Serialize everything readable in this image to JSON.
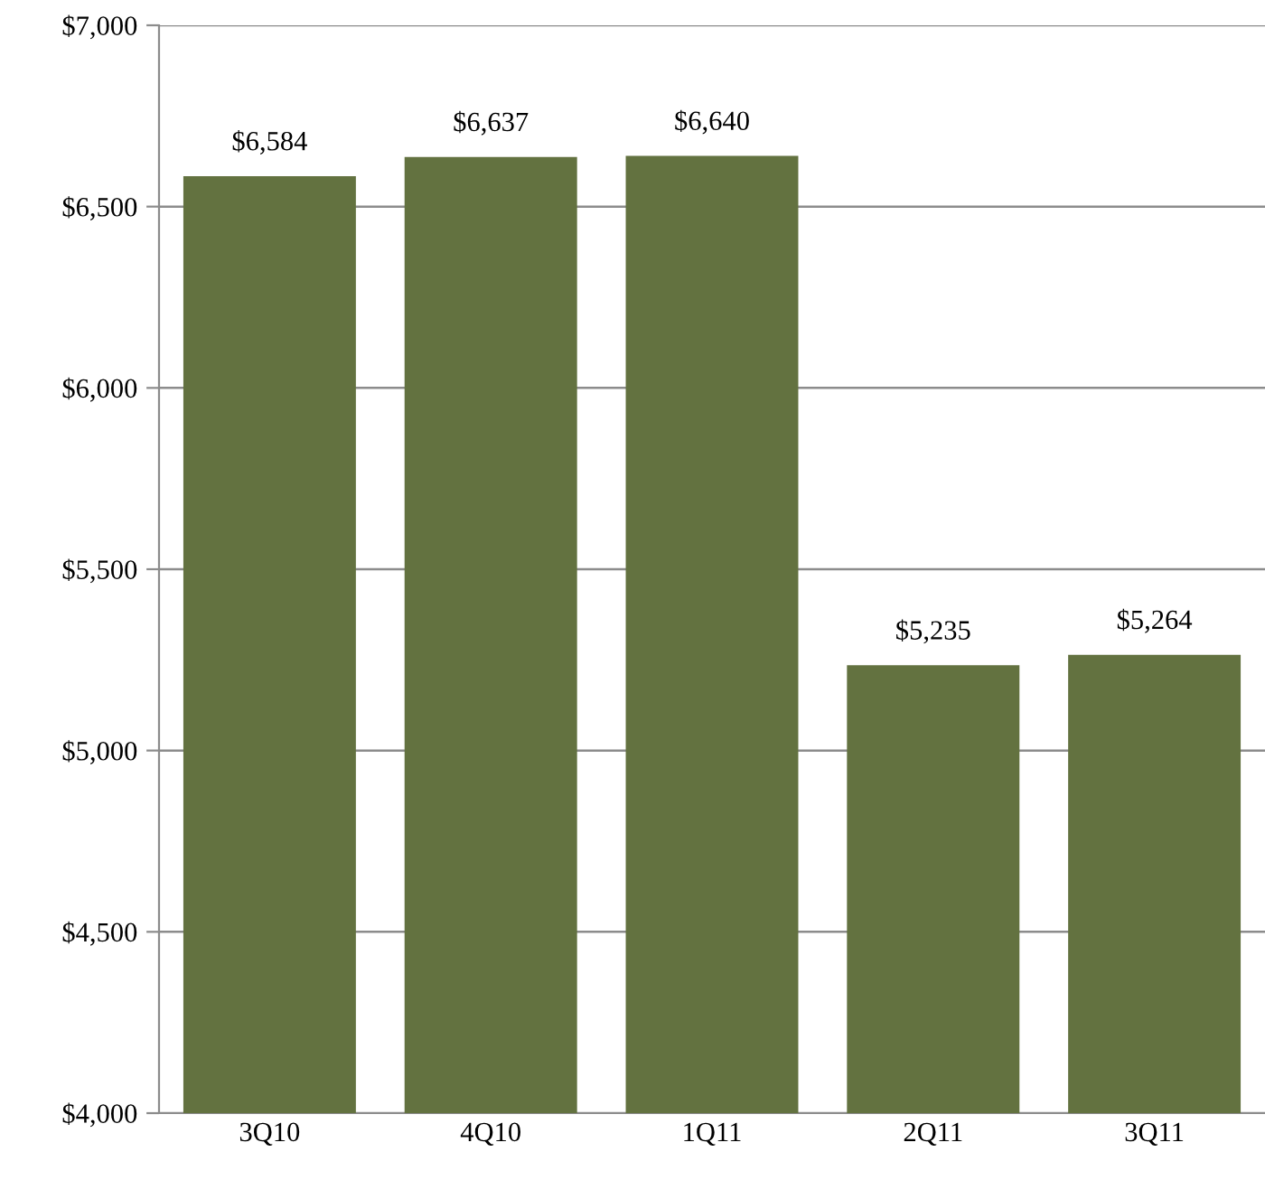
{
  "chart_data": {
    "type": "bar",
    "categories": [
      "3Q10",
      "4Q10",
      "1Q11",
      "2Q11",
      "3Q11"
    ],
    "values": [
      6584,
      6637,
      6640,
      5235,
      5264
    ],
    "value_labels": [
      "$6,584",
      "$6,637",
      "$6,640",
      "$5,235",
      "$5,264"
    ],
    "color": "#637240",
    "ylim": [
      4000,
      7000
    ],
    "yticks": [
      {
        "value": 4000,
        "label": "$4,000"
      },
      {
        "value": 4500,
        "label": "$4,500"
      },
      {
        "value": 5000,
        "label": "$5,000"
      },
      {
        "value": 5500,
        "label": "$5,500"
      },
      {
        "value": 6000,
        "label": "$6,000"
      },
      {
        "value": 6500,
        "label": "$6,500"
      },
      {
        "value": 7000,
        "label": "$7,000"
      }
    ],
    "grid": "y",
    "legend": false
  }
}
